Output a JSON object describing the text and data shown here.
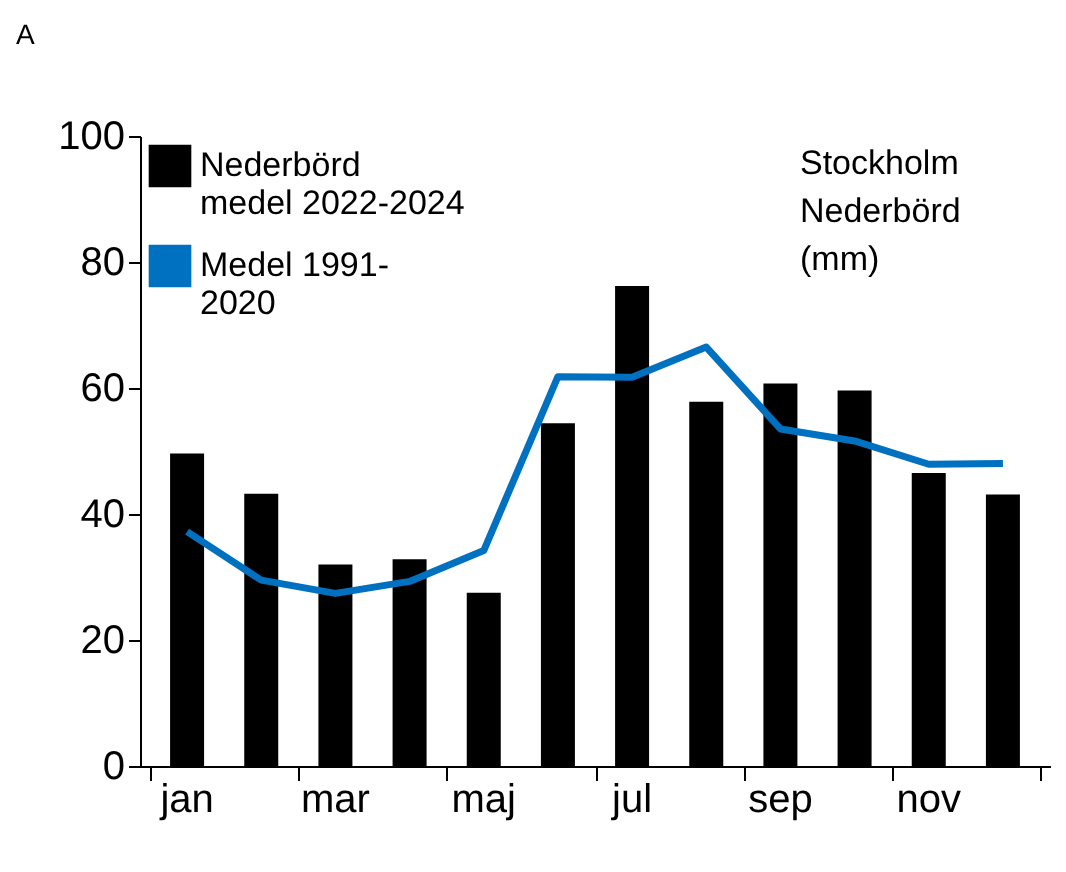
{
  "chart_data": {
    "type": "bar",
    "categories": [
      "jan",
      null,
      "mar",
      null,
      "maj",
      null,
      "jul",
      null,
      "sep",
      null,
      "nov",
      null
    ],
    "series": [
      {
        "name": "Nederbörd medel 2022-2024",
        "color": "#000000",
        "values": [
          49.6,
          43.2,
          32.0,
          32.8,
          27.5,
          54.4,
          76.2,
          57.8,
          60.7,
          59.6,
          46.5,
          43.1
        ]
      },
      {
        "name": "Medel 1991-2020",
        "color": "#0070c0",
        "type": "line",
        "values": [
          37.2,
          29.5,
          27.4,
          29.3,
          34.2,
          61.8,
          61.7,
          66.5,
          53.5,
          51.6,
          47.9,
          48.0
        ]
      }
    ],
    "ylim": [
      0,
      100
    ],
    "yticks": [
      0,
      20,
      40,
      60,
      80,
      100
    ],
    "grid": false,
    "legend": "top left",
    "marker": "none",
    "line_style": "solid",
    "annotations": [
      "A",
      "Stockholm Nederbörd (mm)"
    ]
  }
}
